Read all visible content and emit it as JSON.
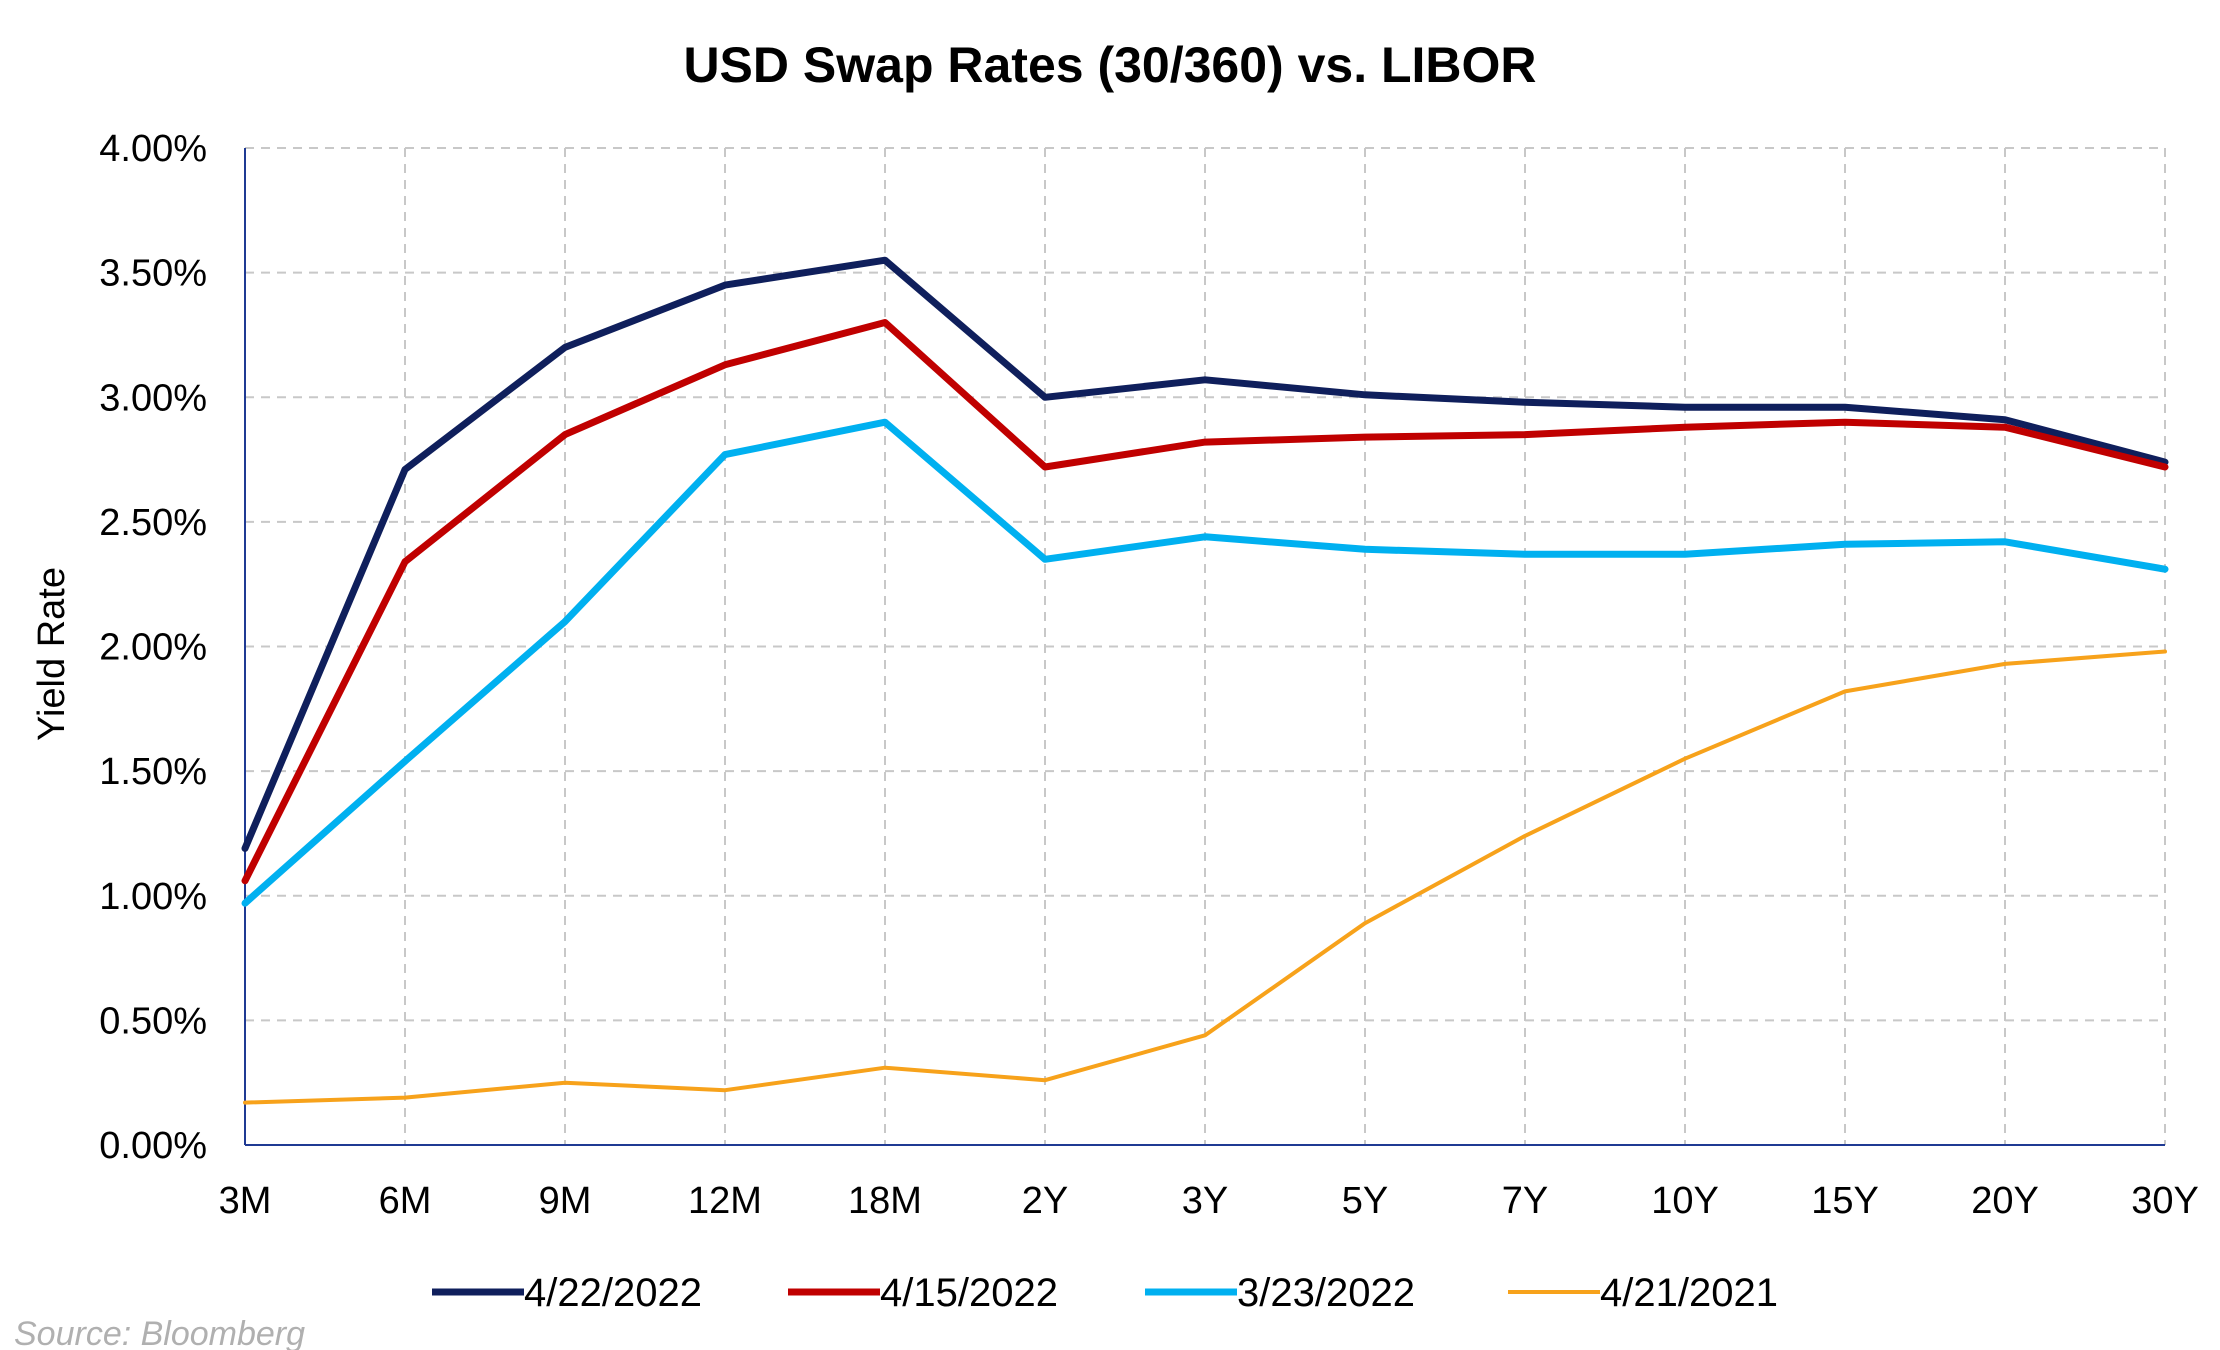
{
  "chart_data": {
    "type": "line",
    "title": "USD Swap Rates (30/360) vs. LIBOR",
    "xlabel": "",
    "ylabel": "Yield Rate",
    "categories": [
      "3M",
      "6M",
      "9M",
      "12M",
      "18M",
      "2Y",
      "3Y",
      "5Y",
      "7Y",
      "10Y",
      "15Y",
      "20Y",
      "30Y"
    ],
    "ylim": [
      0,
      4
    ],
    "yticks": [
      "0.00%",
      "0.50%",
      "1.00%",
      "1.50%",
      "2.00%",
      "2.50%",
      "3.00%",
      "3.50%",
      "4.00%"
    ],
    "grid": true,
    "legend_position": "bottom",
    "series": [
      {
        "name": "4/22/2022",
        "color": "#0f1f5c",
        "values": [
          1.19,
          2.71,
          3.2,
          3.45,
          3.55,
          3.0,
          3.07,
          3.01,
          2.98,
          2.96,
          2.96,
          2.91,
          2.74
        ]
      },
      {
        "name": "4/15/2022",
        "color": "#c00000",
        "values": [
          1.06,
          2.34,
          2.85,
          3.13,
          3.3,
          2.72,
          2.82,
          2.84,
          2.85,
          2.88,
          2.9,
          2.88,
          2.72
        ]
      },
      {
        "name": "3/23/2022",
        "color": "#00b0f0",
        "values": [
          0.97,
          1.54,
          2.1,
          2.77,
          2.9,
          2.35,
          2.44,
          2.39,
          2.37,
          2.37,
          2.41,
          2.42,
          2.31
        ]
      },
      {
        "name": "4/21/2021",
        "color": "#f7a21b",
        "values": [
          0.17,
          0.19,
          0.25,
          0.22,
          0.31,
          0.26,
          0.44,
          0.89,
          1.24,
          1.55,
          1.82,
          1.93,
          1.98
        ]
      }
    ]
  },
  "source": "Source: Bloomberg"
}
